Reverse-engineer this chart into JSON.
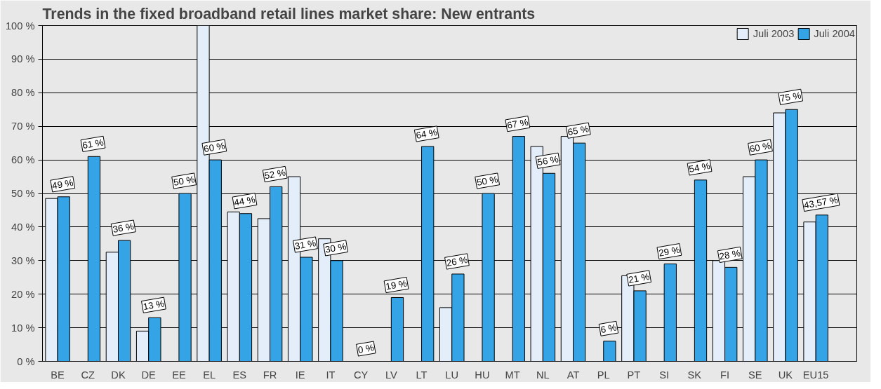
{
  "chart_data": {
    "type": "bar",
    "title": "Trends in the fixed broadband retail lines market share: New entrants",
    "categories": [
      "BE",
      "CZ",
      "DK",
      "DE",
      "EE",
      "EL",
      "ES",
      "FR",
      "IE",
      "IT",
      "CY",
      "LV",
      "LT",
      "LU",
      "HU",
      "MT",
      "NL",
      "AT",
      "PL",
      "PT",
      "SI",
      "SK",
      "FI",
      "SE",
      "UK",
      "EU15"
    ],
    "series": [
      {
        "name": "Juli 2003",
        "color": "#e3eefa",
        "values": [
          48.5,
          null,
          32.5,
          9,
          null,
          100,
          44.5,
          42.5,
          55,
          36.5,
          null,
          null,
          null,
          16,
          null,
          null,
          64,
          67,
          null,
          25.5,
          null,
          null,
          30,
          55,
          74,
          41.5
        ]
      },
      {
        "name": "Juli 2004",
        "color": "#35a4e6",
        "values": [
          49,
          61,
          36,
          13,
          50,
          60,
          44,
          52,
          31,
          30,
          0,
          19,
          64,
          26,
          50,
          67,
          56,
          65,
          6,
          21,
          29,
          54,
          28,
          60,
          75,
          43.57
        ],
        "value_labels": [
          "49 %",
          "61 %",
          "36 %",
          "13 %",
          "50 %",
          "60 %",
          "44 %",
          "52 %",
          "31 %",
          "30 %",
          "0 %",
          "19 %",
          "64 %",
          "26 %",
          "50 %",
          "67 %",
          "56 %",
          "65 %",
          "6 %",
          "21 %",
          "29 %",
          "54 %",
          "28 %",
          "60 %",
          "75 %",
          "43,57 %"
        ]
      }
    ],
    "ylim": [
      0,
      100
    ],
    "yticks": [
      {
        "value": 0,
        "label": "0 %"
      },
      {
        "value": 10,
        "label": "10 %"
      },
      {
        "value": 20,
        "label": "20 %"
      },
      {
        "value": 30,
        "label": "30 %"
      },
      {
        "value": 40,
        "label": "40 %"
      },
      {
        "value": 50,
        "label": "50 %"
      },
      {
        "value": 60,
        "label": "60 %"
      },
      {
        "value": 70,
        "label": "70 %"
      },
      {
        "value": 80,
        "label": "80 %"
      },
      {
        "value": 90,
        "label": "90 %"
      },
      {
        "value": 100,
        "label": "100 %"
      }
    ],
    "grid": "y",
    "legend": "top right"
  }
}
